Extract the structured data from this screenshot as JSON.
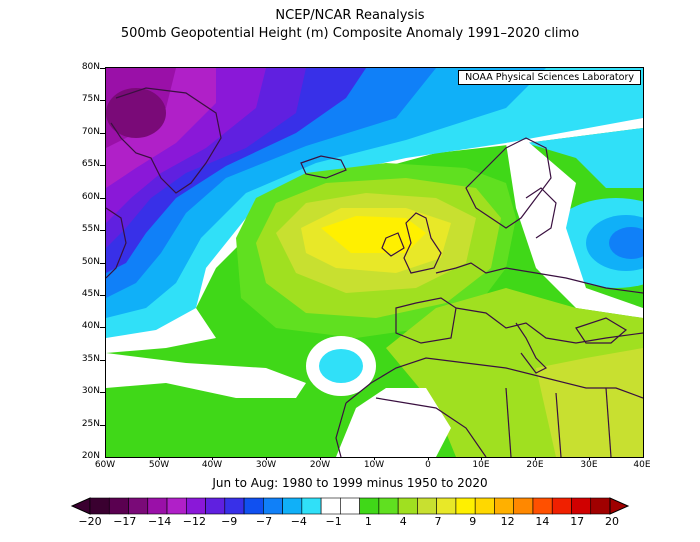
{
  "title_line1": "NCEP/NCAR Reanalysis",
  "title_line2": "500mb Geopotential Height (m) Composite Anomaly 1991–2020 climo",
  "credit": "NOAA Physical Sciences Laboratory",
  "subtitle": "Jun to Aug: 1980 to 1999 minus 1950 to 2020",
  "lat_labels": [
    "80N",
    "75N",
    "70N",
    "65N",
    "60N",
    "55N",
    "50N",
    "45N",
    "40N",
    "35N",
    "30N",
    "25N",
    "20N"
  ],
  "lon_labels": [
    "60W",
    "50W",
    "40W",
    "30W",
    "20W",
    "10W",
    "0",
    "10E",
    "20E",
    "30E",
    "40E"
  ],
  "colorbar_labels": [
    "−20",
    "−17",
    "−14",
    "−12",
    "−9",
    "−7",
    "−4",
    "−1",
    "1",
    "4",
    "7",
    "9",
    "12",
    "14",
    "17",
    "20"
  ],
  "colorbar_colors": [
    "#3a0030",
    "#5a0050",
    "#7a0a78",
    "#9a10a8",
    "#b020c8",
    "#8a18d8",
    "#6020e0",
    "#3830e8",
    "#1050f0",
    "#1080f8",
    "#10b0f8",
    "#30e0f8",
    "#ffffff",
    "#ffffff",
    "#40d818",
    "#60e020",
    "#a0e020",
    "#c8e030",
    "#e8e828",
    "#fff000",
    "#ffd800",
    "#ffb000",
    "#ff8800",
    "#ff5000",
    "#f02000",
    "#d00000",
    "#a00000"
  ]
}
